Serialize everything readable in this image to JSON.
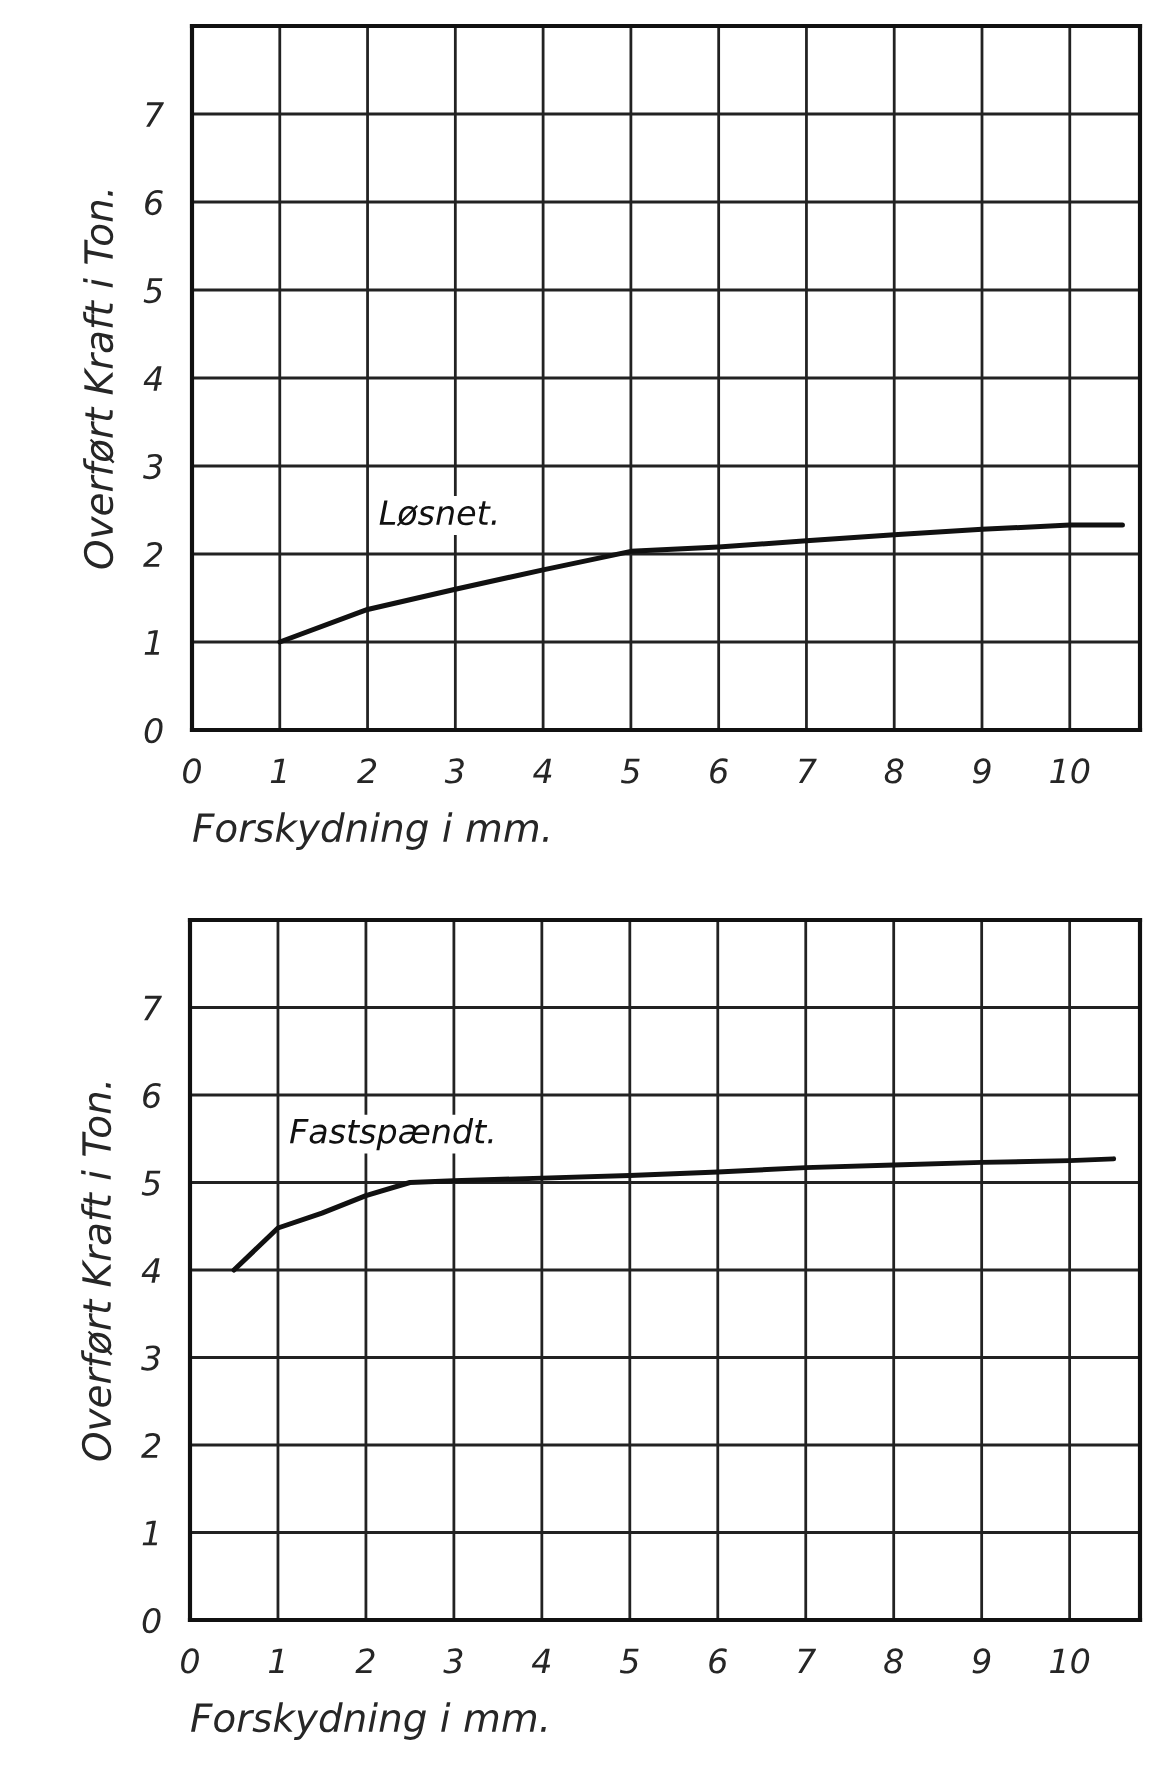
{
  "chart_data": [
    {
      "type": "line",
      "xlabel": "Forskydning i mm.",
      "ylabel": "Overført Kraft i Ton.",
      "xlim": [
        0,
        10.8
      ],
      "ylim": [
        0,
        8
      ],
      "xticks": [
        0,
        1,
        2,
        3,
        4,
        5,
        6,
        7,
        8,
        9,
        10
      ],
      "yticks": [
        0,
        1,
        2,
        3,
        4,
        5,
        6,
        7
      ],
      "grid": true,
      "marker": "none",
      "line_style": "solid",
      "series": [
        {
          "name": "Løsnet.",
          "color": "#111111",
          "x": [
            1,
            2,
            3,
            4,
            5,
            6,
            7,
            8,
            9,
            10,
            10.6
          ],
          "values": [
            1.0,
            1.37,
            1.6,
            1.82,
            2.03,
            2.08,
            2.15,
            2.22,
            2.28,
            2.33,
            2.33
          ]
        }
      ]
    },
    {
      "type": "line",
      "xlabel": "Forskydning i mm.",
      "ylabel": "Overført Kraft i Ton.",
      "xlim": [
        0,
        10.8
      ],
      "ylim": [
        0,
        8
      ],
      "xticks": [
        0,
        1,
        2,
        3,
        4,
        5,
        6,
        7,
        8,
        9,
        10
      ],
      "yticks": [
        0,
        1,
        2,
        3,
        4,
        5,
        6,
        7
      ],
      "grid": true,
      "marker": "none",
      "line_style": "solid",
      "series": [
        {
          "name": "Fastspændt.",
          "color": "#111111",
          "x": [
            0.5,
            1,
            1.5,
            2,
            2.5,
            3,
            4,
            5,
            6,
            7,
            8,
            9,
            10,
            10.5
          ],
          "values": [
            4.0,
            4.48,
            4.65,
            4.85,
            5.0,
            5.02,
            5.05,
            5.08,
            5.12,
            5.17,
            5.2,
            5.23,
            5.25,
            5.27
          ]
        }
      ]
    }
  ]
}
